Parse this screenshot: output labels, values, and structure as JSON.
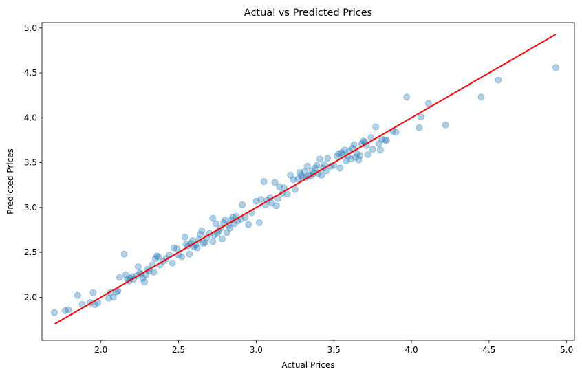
{
  "chart_data": {
    "type": "scatter",
    "title": "Actual vs Predicted Prices",
    "xlabel": "Actual Prices",
    "ylabel": "Predicted Prices",
    "xlim": [
      1.62,
      5.05
    ],
    "ylim": [
      1.52,
      5.06
    ],
    "xticks": [
      "2.0",
      "2.5",
      "3.0",
      "3.5",
      "4.0",
      "4.5",
      "5.0"
    ],
    "yticks": [
      "2.0",
      "2.5",
      "3.0",
      "3.5",
      "4.0",
      "4.5",
      "5.0"
    ],
    "grid": false,
    "colors": {
      "points": "#1f77b4",
      "line": "#ff0000"
    },
    "point_alpha": 0.35,
    "series": [
      {
        "kind": "scatter",
        "points": [
          [
            1.7,
            1.83
          ],
          [
            1.77,
            1.85
          ],
          [
            1.79,
            1.86
          ],
          [
            1.85,
            2.02
          ],
          [
            1.88,
            1.92
          ],
          [
            1.93,
            1.94
          ],
          [
            1.95,
            2.05
          ],
          [
            1.96,
            1.92
          ],
          [
            1.98,
            1.94
          ],
          [
            2.05,
            1.99
          ],
          [
            2.06,
            2.05
          ],
          [
            2.08,
            2.0
          ],
          [
            2.1,
            2.06
          ],
          [
            2.11,
            2.07
          ],
          [
            2.12,
            2.22
          ],
          [
            2.15,
            2.48
          ],
          [
            2.16,
            2.25
          ],
          [
            2.17,
            2.2
          ],
          [
            2.18,
            2.18
          ],
          [
            2.19,
            2.21
          ],
          [
            2.2,
            2.23
          ],
          [
            2.21,
            2.2
          ],
          [
            2.23,
            2.24
          ],
          [
            2.24,
            2.34
          ],
          [
            2.25,
            2.27
          ],
          [
            2.26,
            2.26
          ],
          [
            2.27,
            2.21
          ],
          [
            2.28,
            2.17
          ],
          [
            2.29,
            2.25
          ],
          [
            2.3,
            2.31
          ],
          [
            2.31,
            2.29
          ],
          [
            2.33,
            2.36
          ],
          [
            2.34,
            2.28
          ],
          [
            2.35,
            2.43
          ],
          [
            2.36,
            2.46
          ],
          [
            2.37,
            2.45
          ],
          [
            2.38,
            2.36
          ],
          [
            2.4,
            2.4
          ],
          [
            2.42,
            2.43
          ],
          [
            2.44,
            2.47
          ],
          [
            2.46,
            2.38
          ],
          [
            2.47,
            2.55
          ],
          [
            2.49,
            2.54
          ],
          [
            2.5,
            2.47
          ],
          [
            2.52,
            2.45
          ],
          [
            2.54,
            2.67
          ],
          [
            2.55,
            2.59
          ],
          [
            2.56,
            2.57
          ],
          [
            2.57,
            2.48
          ],
          [
            2.58,
            2.6
          ],
          [
            2.59,
            2.63
          ],
          [
            2.6,
            2.56
          ],
          [
            2.61,
            2.58
          ],
          [
            2.62,
            2.55
          ],
          [
            2.63,
            2.64
          ],
          [
            2.64,
            2.7
          ],
          [
            2.65,
            2.74
          ],
          [
            2.66,
            2.6
          ],
          [
            2.67,
            2.61
          ],
          [
            2.68,
            2.66
          ],
          [
            2.7,
            2.71
          ],
          [
            2.72,
            2.62
          ],
          [
            2.72,
            2.88
          ],
          [
            2.73,
            2.69
          ],
          [
            2.74,
            2.82
          ],
          [
            2.75,
            2.71
          ],
          [
            2.76,
            2.74
          ],
          [
            2.77,
            2.77
          ],
          [
            2.78,
            2.65
          ],
          [
            2.79,
            2.83
          ],
          [
            2.8,
            2.86
          ],
          [
            2.81,
            2.72
          ],
          [
            2.82,
            2.8
          ],
          [
            2.83,
            2.77
          ],
          [
            2.84,
            2.86
          ],
          [
            2.85,
            2.89
          ],
          [
            2.86,
            2.82
          ],
          [
            2.87,
            2.9
          ],
          [
            2.88,
            2.85
          ],
          [
            2.9,
            2.87
          ],
          [
            2.91,
            3.03
          ],
          [
            2.93,
            2.89
          ],
          [
            2.95,
            2.81
          ],
          [
            2.97,
            2.94
          ],
          [
            3.0,
            3.07
          ],
          [
            3.02,
            2.83
          ],
          [
            3.03,
            3.09
          ],
          [
            3.05,
            3.29
          ],
          [
            3.06,
            3.03
          ],
          [
            3.07,
            3.08
          ],
          [
            3.09,
            3.11
          ],
          [
            3.1,
            3.05
          ],
          [
            3.12,
            3.28
          ],
          [
            3.13,
            3.02
          ],
          [
            3.14,
            3.1
          ],
          [
            3.15,
            3.23
          ],
          [
            3.17,
            3.16
          ],
          [
            3.18,
            3.22
          ],
          [
            3.2,
            3.15
          ],
          [
            3.22,
            3.36
          ],
          [
            3.24,
            3.31
          ],
          [
            3.25,
            3.2
          ],
          [
            3.27,
            3.32
          ],
          [
            3.28,
            3.39
          ],
          [
            3.29,
            3.36
          ],
          [
            3.3,
            3.33
          ],
          [
            3.31,
            3.4
          ],
          [
            3.32,
            3.33
          ],
          [
            3.33,
            3.46
          ],
          [
            3.34,
            3.36
          ],
          [
            3.35,
            3.35
          ],
          [
            3.36,
            3.41
          ],
          [
            3.37,
            3.38
          ],
          [
            3.38,
            3.44
          ],
          [
            3.39,
            3.47
          ],
          [
            3.4,
            3.38
          ],
          [
            3.41,
            3.54
          ],
          [
            3.42,
            3.36
          ],
          [
            3.43,
            3.44
          ],
          [
            3.44,
            3.48
          ],
          [
            3.45,
            3.41
          ],
          [
            3.46,
            3.55
          ],
          [
            3.48,
            3.46
          ],
          [
            3.5,
            3.47
          ],
          [
            3.52,
            3.57
          ],
          [
            3.53,
            3.6
          ],
          [
            3.54,
            3.44
          ],
          [
            3.55,
            3.61
          ],
          [
            3.56,
            3.59
          ],
          [
            3.57,
            3.64
          ],
          [
            3.58,
            3.52
          ],
          [
            3.59,
            3.57
          ],
          [
            3.6,
            3.63
          ],
          [
            3.61,
            3.54
          ],
          [
            3.62,
            3.66
          ],
          [
            3.63,
            3.7
          ],
          [
            3.64,
            3.56
          ],
          [
            3.65,
            3.6
          ],
          [
            3.66,
            3.53
          ],
          [
            3.67,
            3.58
          ],
          [
            3.68,
            3.71
          ],
          [
            3.69,
            3.74
          ],
          [
            3.7,
            3.73
          ],
          [
            3.71,
            3.69
          ],
          [
            3.72,
            3.59
          ],
          [
            3.74,
            3.78
          ],
          [
            3.75,
            3.65
          ],
          [
            3.77,
            3.9
          ],
          [
            3.79,
            3.71
          ],
          [
            3.8,
            3.64
          ],
          [
            3.81,
            3.76
          ],
          [
            3.83,
            3.75
          ],
          [
            3.84,
            3.75
          ],
          [
            3.88,
            3.85
          ],
          [
            3.9,
            3.84
          ],
          [
            3.97,
            4.23
          ],
          [
            4.05,
            3.89
          ],
          [
            4.06,
            4.01
          ],
          [
            4.11,
            4.16
          ],
          [
            4.22,
            3.92
          ],
          [
            4.45,
            4.23
          ],
          [
            4.56,
            4.42
          ],
          [
            4.93,
            4.56
          ]
        ]
      },
      {
        "kind": "line",
        "from": [
          1.7,
          1.7
        ],
        "to": [
          4.93,
          4.93
        ]
      }
    ]
  }
}
